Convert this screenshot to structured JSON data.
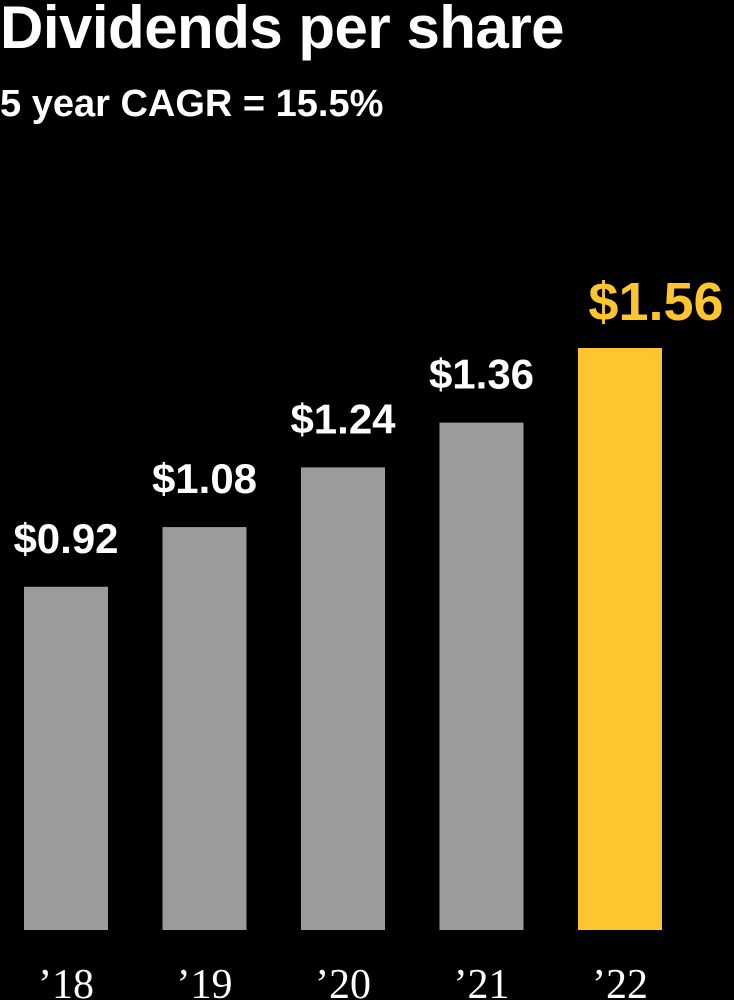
{
  "chart_data": {
    "type": "bar",
    "title": "Dividends per share",
    "subtitle": "5 year CAGR = 15.5%",
    "categories": [
      "’18",
      "’19",
      "’20",
      "’21",
      "’22"
    ],
    "values": [
      0.92,
      1.08,
      1.24,
      1.36,
      1.56
    ],
    "value_labels": [
      "$0.92",
      "$1.08",
      "$1.24",
      "$1.36",
      "$1.56"
    ],
    "xlabel": "",
    "ylabel": "",
    "ylim": [
      0,
      1.56
    ],
    "grid": false,
    "legend": "none",
    "highlight_index": 4,
    "colors": {
      "background": "#000000",
      "bar": "#9b9b9e",
      "highlight": "#fec52e",
      "text": "#ffffff"
    }
  }
}
